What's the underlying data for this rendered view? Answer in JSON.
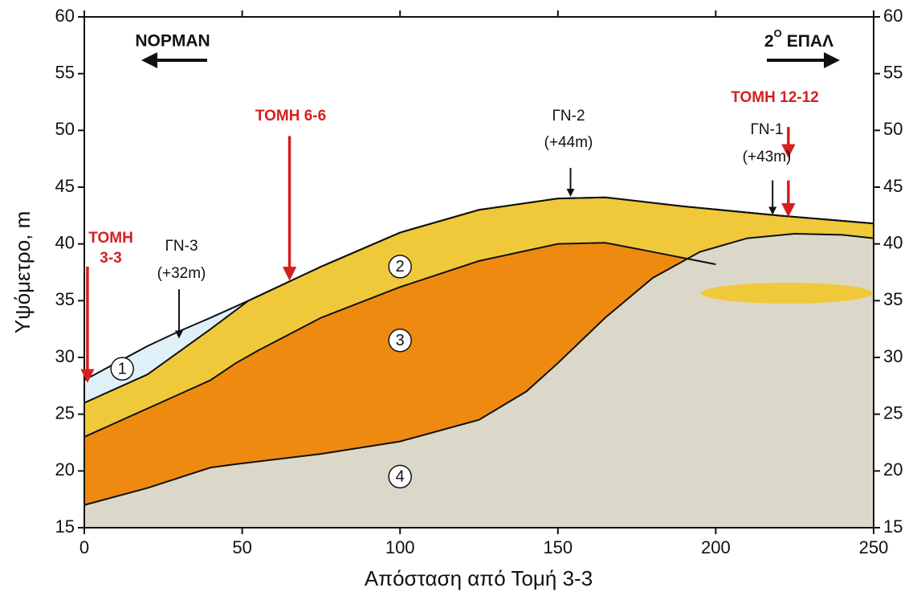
{
  "chart_data": {
    "type": "layers",
    "x_label": "Απόσταση από Τομή 3-3",
    "y_label": "Υψόμετρο, m",
    "xlim": [
      0,
      250
    ],
    "ylim": [
      15,
      60
    ],
    "xticks": [
      0,
      50,
      100,
      150,
      200,
      250
    ],
    "yticks": [
      15,
      20,
      25,
      30,
      35,
      40,
      45,
      50,
      55,
      60
    ],
    "series": [
      {
        "name": "1",
        "color": "#dff0f8",
        "x": [
          0,
          10,
          20,
          30,
          40,
          52,
          75,
          100,
          125,
          150,
          165,
          190,
          220,
          250
        ],
        "values": [
          28,
          29.5,
          31,
          32.3,
          33.5,
          35,
          38,
          41,
          43,
          44,
          44.1,
          43.3,
          42.5,
          41.8
        ]
      },
      {
        "name": "2",
        "color": "#f0c93a",
        "x": [
          0,
          20,
          40,
          52,
          75,
          100,
          125,
          150,
          165,
          190,
          220,
          250
        ],
        "values": [
          26,
          28.5,
          32.5,
          35,
          38,
          41,
          43,
          44,
          44.1,
          43.3,
          42.5,
          41.8
        ]
      },
      {
        "name": "3",
        "color": "#ee8a10",
        "x": [
          0,
          20,
          40,
          48,
          55,
          75,
          100,
          125,
          150,
          165,
          180,
          200
        ],
        "values": [
          23,
          25.5,
          28,
          29.5,
          30.6,
          33.5,
          36.2,
          38.5,
          40,
          40.1,
          39.3,
          38.2
        ]
      },
      {
        "name": "4",
        "color": "#dcd8c9",
        "x": [
          0,
          20,
          40,
          48,
          75,
          100,
          125,
          140,
          150,
          165,
          180,
          195,
          210,
          225,
          240,
          250
        ],
        "values": [
          17,
          18.5,
          20.3,
          20.6,
          21.5,
          22.6,
          24.5,
          27,
          29.5,
          33.5,
          37,
          39.3,
          40.5,
          40.9,
          40.8,
          40.5
        ]
      }
    ],
    "annotations": [
      {
        "lines": [
          "ΤΟΜΗ",
          "3-3"
        ],
        "color": "#d42020"
      },
      {
        "lines": [
          "ΓΝ-3",
          "(+32m)"
        ],
        "color": "#111111"
      },
      {
        "lines": [
          "ΤΟΜΗ 6-6"
        ],
        "color": "#d42020"
      },
      {
        "lines": [
          "ΓΝ-2",
          "(+44m)"
        ],
        "color": "#111111"
      },
      {
        "lines": [
          "ΤΟΜΗ 12-12"
        ],
        "color": "#d42020"
      },
      {
        "lines": [
          "ΓΝ-1",
          "(+43m)"
        ],
        "color": "#111111"
      }
    ],
    "left_direction": "ΝΟΡΜΑΝ",
    "right_direction": [
      "2",
      "Ο",
      "ΕΠΑΛ"
    ]
  }
}
